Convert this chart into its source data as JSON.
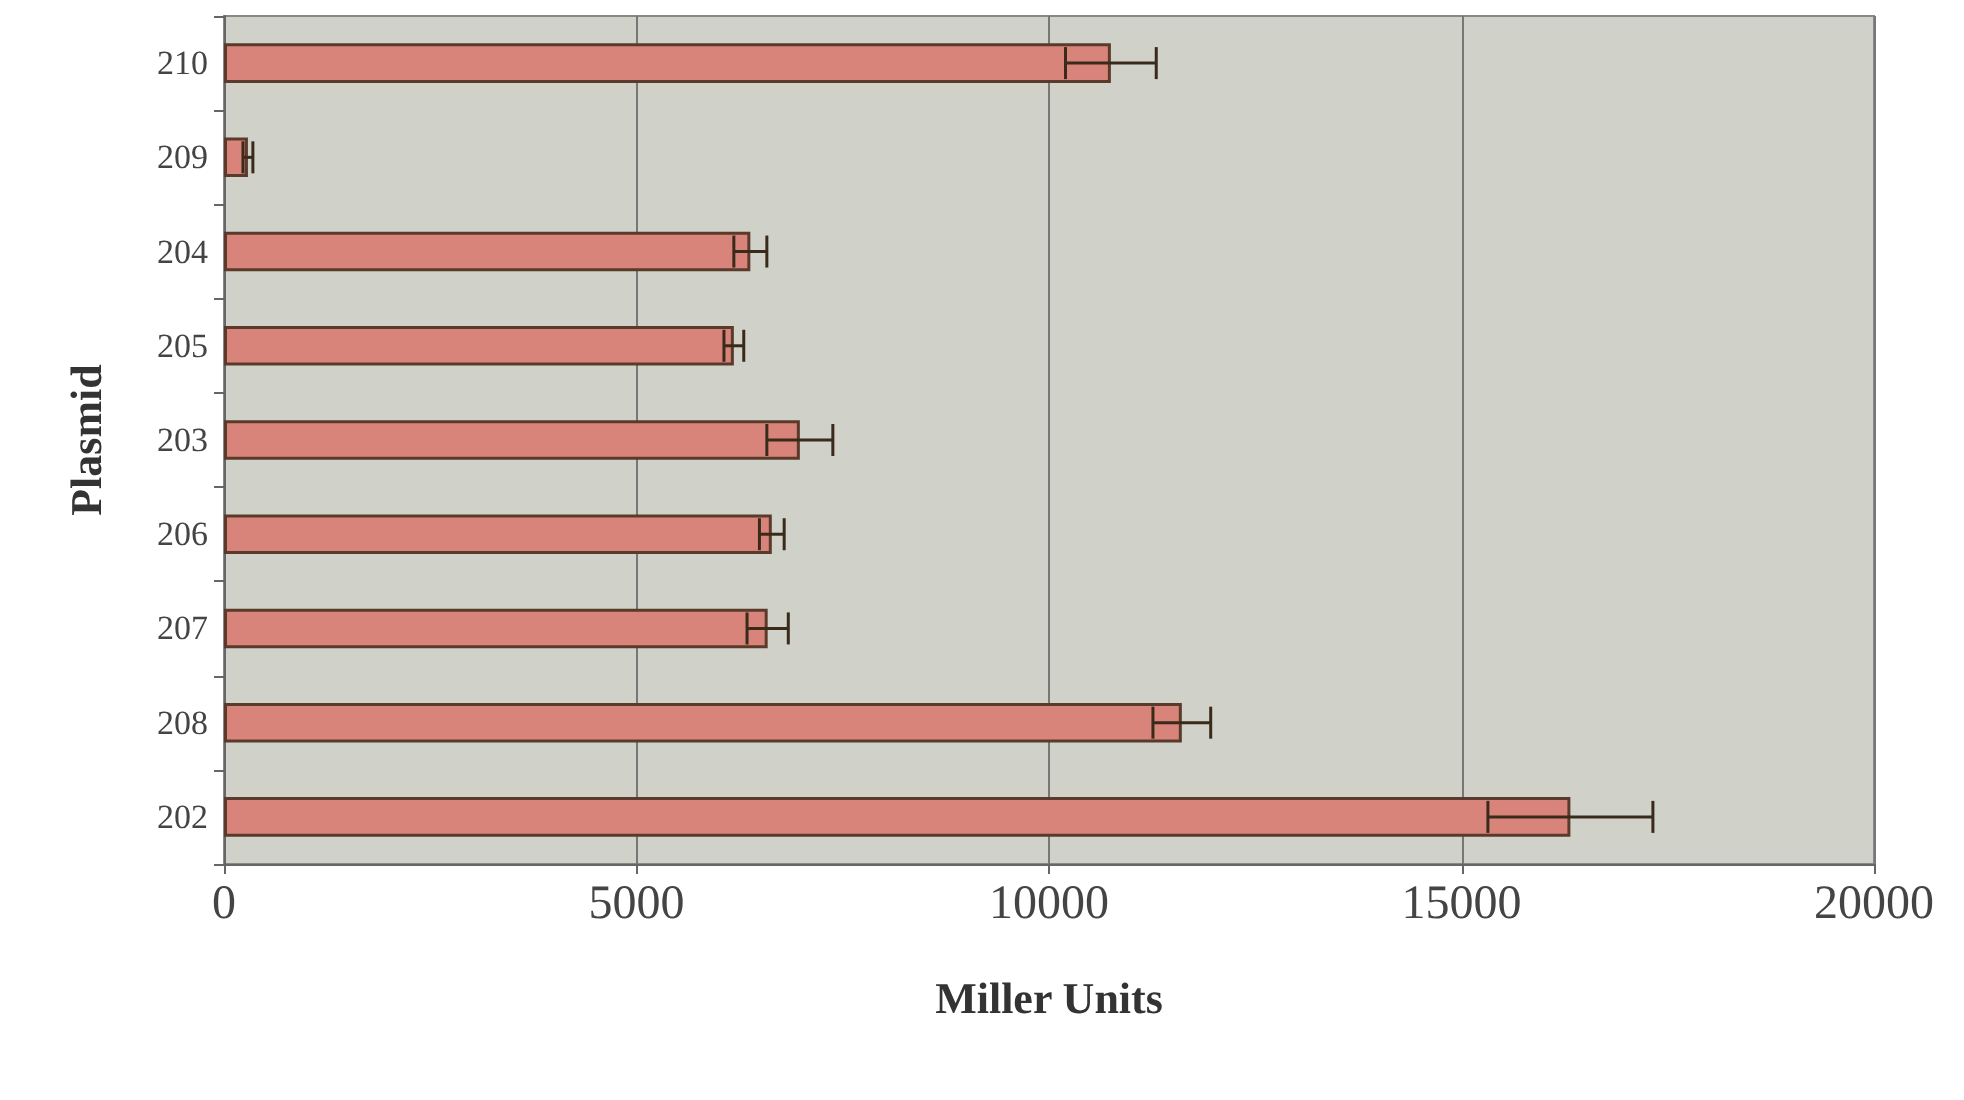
{
  "chart_data": {
    "type": "bar",
    "orientation": "horizontal",
    "xlabel": "Miller Units",
    "ylabel": "Plasmid",
    "categories": [
      "210",
      "209",
      "204",
      "205",
      "203",
      "206",
      "207",
      "208",
      "202"
    ],
    "values": [
      10750,
      290,
      6380,
      6180,
      6980,
      6640,
      6590,
      11610,
      16320
    ],
    "errors": [
      550,
      60,
      200,
      120,
      400,
      150,
      250,
      350,
      1000
    ],
    "color": "#d9847a",
    "xlim": [
      0,
      20000
    ],
    "xticks": [
      0,
      5000,
      10000,
      15000,
      20000
    ],
    "grid": "x"
  }
}
